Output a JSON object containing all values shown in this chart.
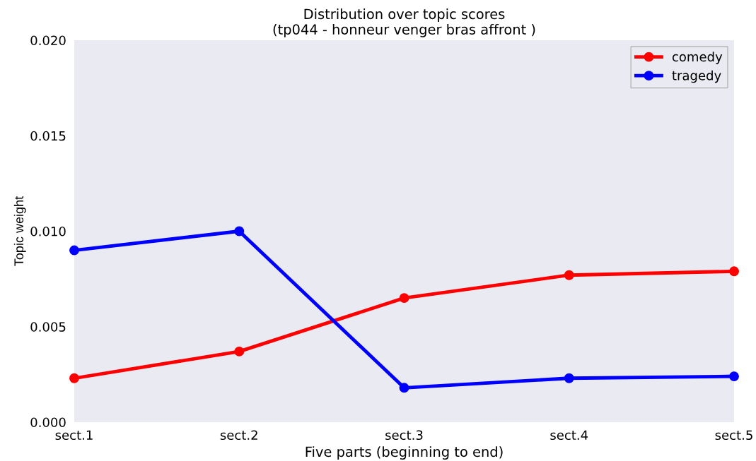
{
  "chart_data": {
    "type": "line",
    "title": "Distribution over topic scores\n(tp044 - honneur venger bras affront )",
    "xlabel": "Five parts (beginning to end)",
    "ylabel": "Topic weight",
    "categories": [
      "sect.1",
      "sect.2",
      "sect.3",
      "sect.4",
      "sect.5"
    ],
    "series": [
      {
        "name": "comedy",
        "color": "#ff0000",
        "values": [
          0.0023,
          0.0037,
          0.0065,
          0.0077,
          0.0079
        ]
      },
      {
        "name": "tragedy",
        "color": "#0000ff",
        "values": [
          0.009,
          0.01,
          0.0018,
          0.0023,
          0.0024
        ]
      }
    ],
    "ylim": [
      0,
      0.02
    ],
    "yticks": [
      {
        "value": 0,
        "label": "0.000"
      },
      {
        "value": 0.005,
        "label": "0.005"
      },
      {
        "value": 0.01,
        "label": "0.010"
      },
      {
        "value": 0.015,
        "label": "0.015"
      },
      {
        "value": 0.02,
        "label": "0.020"
      }
    ],
    "grid": false,
    "legend": "top right",
    "marker": "circle",
    "line_style": "solid"
  }
}
